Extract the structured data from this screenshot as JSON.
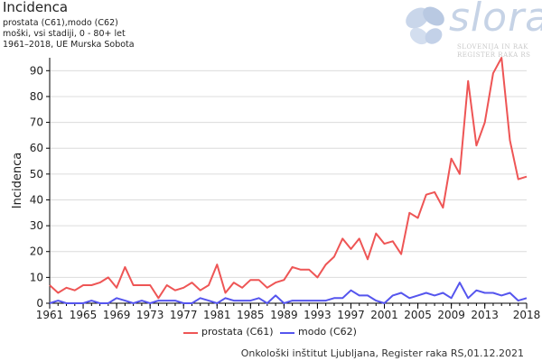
{
  "header": {
    "title": "Incidenca",
    "subtitle_lines": [
      "prostata  (C61),modo  (C62)",
      "moški, vsi stadiji, 0 - 80+ let",
      "1961–2018, UE Murska Sobota"
    ]
  },
  "logo": {
    "word": "slora",
    "line1": "SLOVENIJA IN RAK",
    "line2": "REGISTER RAKA RS"
  },
  "footer": "Onkološki inštitut Ljubljana, Register raka RS,01.12.2021",
  "colors": {
    "prostata": "#ee5555",
    "modo": "#5555ee",
    "axis": "#000000",
    "grid": "#dcdcdc"
  },
  "chart_data": {
    "type": "line",
    "title": "Incidenca",
    "ylabel": "Incidenca",
    "xlabel": "",
    "ylim": [
      0,
      95
    ],
    "xlim": [
      1961,
      2018
    ],
    "x_ticks": [
      1961,
      1965,
      1969,
      1973,
      1977,
      1981,
      1985,
      1989,
      1993,
      1997,
      2001,
      2005,
      2009,
      2013,
      2018
    ],
    "y_ticks": [
      0,
      10,
      20,
      30,
      40,
      50,
      60,
      70,
      80,
      90
    ],
    "grid": "horizontal",
    "legend": "bottom",
    "x": [
      1961,
      1962,
      1963,
      1964,
      1965,
      1966,
      1967,
      1968,
      1969,
      1970,
      1971,
      1972,
      1973,
      1974,
      1975,
      1976,
      1977,
      1978,
      1979,
      1980,
      1981,
      1982,
      1983,
      1984,
      1985,
      1986,
      1987,
      1988,
      1989,
      1990,
      1991,
      1992,
      1993,
      1994,
      1995,
      1996,
      1997,
      1998,
      1999,
      2000,
      2001,
      2002,
      2003,
      2004,
      2005,
      2006,
      2007,
      2008,
      2009,
      2010,
      2011,
      2012,
      2013,
      2014,
      2015,
      2016,
      2017,
      2018
    ],
    "series": [
      {
        "name": "prostata (C61)",
        "values": [
          7,
          4,
          6,
          5,
          7,
          7,
          8,
          10,
          6,
          14,
          7,
          7,
          7,
          2,
          7,
          5,
          6,
          8,
          5,
          7,
          15,
          4,
          8,
          6,
          9,
          9,
          6,
          8,
          9,
          14,
          13,
          13,
          10,
          15,
          18,
          25,
          21,
          25,
          17,
          27,
          23,
          24,
          19,
          35,
          33,
          42,
          43,
          37,
          56,
          50,
          86,
          61,
          70,
          89,
          95,
          63,
          48,
          49
        ]
      },
      {
        "name": "modo (C62)",
        "values": [
          0,
          1,
          0,
          0,
          0,
          1,
          0,
          0,
          2,
          1,
          0,
          1,
          0,
          1,
          1,
          1,
          0,
          0,
          2,
          1,
          0,
          2,
          1,
          1,
          1,
          2,
          0,
          3,
          0,
          1,
          1,
          1,
          1,
          1,
          2,
          2,
          5,
          3,
          3,
          1,
          0,
          3,
          4,
          2,
          3,
          4,
          3,
          4,
          2,
          8,
          2,
          5,
          4,
          4,
          3,
          4,
          1,
          2
        ]
      }
    ]
  }
}
